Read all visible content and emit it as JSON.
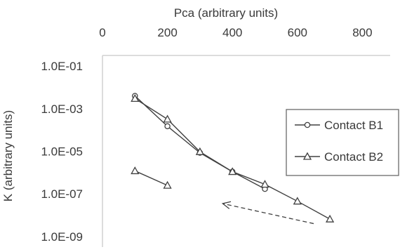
{
  "chart_data": {
    "type": "scatter",
    "title": "",
    "xlabel": "Pca (arbitrary units)",
    "ylabel": "K (arbitrary units)",
    "xlim": [
      0,
      900
    ],
    "ylim_log10": [
      -9,
      -1
    ],
    "y_scale": "log",
    "x_axis_position": "top",
    "grid": false,
    "legend_position": "right",
    "x_ticks": [
      {
        "value": 0,
        "label": "0"
      },
      {
        "value": 200,
        "label": "200"
      },
      {
        "value": 400,
        "label": "400"
      },
      {
        "value": 600,
        "label": "600"
      },
      {
        "value": 800,
        "label": "800"
      }
    ],
    "y_ticks": [
      {
        "value": 0.1,
        "label": "1.0E-01"
      },
      {
        "value": 0.001,
        "label": "1.0E-03"
      },
      {
        "value": 1e-05,
        "label": "1.0E-05"
      },
      {
        "value": 1e-07,
        "label": "1.0E-07"
      },
      {
        "value": 1e-09,
        "label": "1.0E-09"
      }
    ],
    "series": [
      {
        "name": "Contact B1",
        "marker": "circle",
        "color": "#404040",
        "x": [
          100,
          200,
          300,
          400,
          500
        ],
        "y": [
          0.004,
          0.00015,
          8.5e-06,
          1.1e-06,
          1.7e-07
        ]
      },
      {
        "name": "Contact B2",
        "marker": "triangle",
        "color": "#404040",
        "x": [
          100,
          200,
          300,
          400,
          500,
          600,
          700
        ],
        "y": [
          0.003,
          0.00032,
          9.5e-06,
          1.1e-06,
          2.8e-07,
          4.5e-08,
          6.5e-09
        ]
      },
      {
        "marker": "triangle",
        "color": "#404040",
        "x": [
          100,
          200
        ],
        "y": [
          1.2e-06,
          2.5e-07
        ]
      }
    ],
    "annotations": [
      {
        "type": "dashed-arrow",
        "from": [
          650,
          4e-09
        ],
        "to": [
          370,
          3.5e-08
        ],
        "color": "#404040"
      }
    ]
  }
}
